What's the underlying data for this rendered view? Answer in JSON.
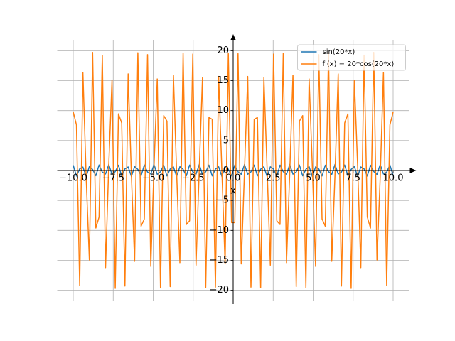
{
  "chart_data": {
    "type": "line",
    "x": [
      -10,
      -9.798,
      -9.596,
      -9.394,
      -9.192,
      -8.99,
      -8.788,
      -8.586,
      -8.384,
      -8.182,
      -7.98,
      -7.778,
      -7.576,
      -7.374,
      -7.172,
      -6.97,
      -6.768,
      -6.566,
      -6.364,
      -6.162,
      -5.96,
      -5.758,
      -5.556,
      -5.354,
      -5.152,
      -4.949,
      -4.747,
      -4.545,
      -4.343,
      -4.141,
      -3.939,
      -3.737,
      -3.535,
      -3.333,
      -3.131,
      -2.929,
      -2.727,
      -2.525,
      -2.323,
      -2.121,
      -1.919,
      -1.717,
      -1.515,
      -1.313,
      -1.111,
      -0.909,
      -0.707,
      -0.505,
      -0.303,
      -0.101,
      0.101,
      0.303,
      0.505,
      0.707,
      0.909,
      1.111,
      1.313,
      1.515,
      1.717,
      1.919,
      2.121,
      2.323,
      2.525,
      2.727,
      2.929,
      3.131,
      3.333,
      3.535,
      3.737,
      3.939,
      4.141,
      4.343,
      4.545,
      4.747,
      4.949,
      5.152,
      5.354,
      5.556,
      5.758,
      5.96,
      6.162,
      6.364,
      6.566,
      6.768,
      6.97,
      7.172,
      7.374,
      7.576,
      7.778,
      7.98,
      8.182,
      8.384,
      8.586,
      8.788,
      8.99,
      9.192,
      9.394,
      9.596,
      9.798,
      10
    ],
    "series": [
      {
        "name": "sin(20*x)",
        "color": "#1f77b4",
        "values": [
          0.873,
          -0.925,
          0.278,
          0.578,
          -0.999,
          0.665,
          0.171,
          -0.877,
          0.922,
          -0.27,
          -0.585,
          0.999,
          -0.659,
          -0.179,
          0.881,
          -0.918,
          0.262,
          0.592,
          -0.999,
          0.652,
          0.188,
          -0.885,
          0.915,
          -0.254,
          -0.599,
          1.0,
          -0.645,
          -0.196,
          0.889,
          -0.911,
          0.245,
          0.606,
          -1.0,
          0.639,
          0.204,
          -0.893,
          0.908,
          -0.237,
          -0.613,
          1.0,
          -0.633,
          -0.213,
          0.897,
          -0.904,
          0.229,
          0.619,
          -1.0,
          0.626,
          0.221,
          -0.9,
          0.9,
          -0.221,
          -0.626,
          1.0,
          -0.619,
          -0.229,
          0.904,
          -0.897,
          0.213,
          0.633,
          -1.0,
          0.613,
          0.237,
          -0.908,
          0.893,
          -0.204,
          -0.639,
          1.0,
          -0.606,
          -0.245,
          0.911,
          -0.889,
          0.196,
          0.645,
          -1.0,
          0.599,
          0.254,
          -0.915,
          0.885,
          -0.188,
          -0.652,
          0.999,
          -0.592,
          -0.262,
          0.918,
          -0.881,
          0.179,
          0.659,
          -0.999,
          0.585,
          0.27,
          -0.922,
          0.877,
          -0.171,
          -0.665,
          0.999,
          -0.578,
          -0.278,
          0.925,
          -0.873
        ]
      },
      {
        "name": "f'(x) = 20*cos(20*x)",
        "color": "#ff7f0e",
        "values": [
          9.76,
          7.61,
          -19.21,
          16.32,
          -1.1,
          -14.94,
          19.71,
          -9.61,
          -7.77,
          19.26,
          -16.22,
          0.93,
          15.05,
          -19.68,
          9.46,
          7.93,
          -19.3,
          16.12,
          -0.76,
          -15.16,
          19.65,
          -9.31,
          -8.08,
          19.35,
          -16.01,
          0.59,
          15.28,
          -19.61,
          9.16,
          8.24,
          -19.39,
          15.91,
          -0.42,
          -15.39,
          19.58,
          -9.01,
          -8.4,
          19.43,
          -15.81,
          0.25,
          15.49,
          -19.54,
          8.85,
          8.55,
          -19.47,
          15.7,
          -0.08,
          -15.6,
          19.51,
          -8.7,
          -8.7,
          19.51,
          -15.6,
          -0.08,
          15.7,
          -19.47,
          8.55,
          8.85,
          -19.54,
          15.49,
          0.25,
          -15.81,
          19.43,
          -8.4,
          -9.01,
          19.58,
          -15.39,
          -0.42,
          15.91,
          -19.39,
          8.24,
          9.16,
          -19.61,
          15.28,
          0.59,
          -16.01,
          19.35,
          -8.08,
          -9.31,
          19.65,
          -15.16,
          -0.76,
          16.12,
          -19.3,
          7.93,
          9.46,
          -19.68,
          15.05,
          0.93,
          -16.22,
          19.26,
          -7.77,
          -9.61,
          19.71,
          -14.94,
          -1.1,
          16.32,
          -19.21,
          7.61,
          9.76
        ]
      }
    ],
    "x_label": "x",
    "xlim": [
      -11,
      11
    ],
    "ylim": [
      -21.7,
      21.7
    ],
    "xticks": [
      {
        "value": -10,
        "label": "−10.0"
      },
      {
        "value": -7.5,
        "label": "−7.5"
      },
      {
        "value": -5,
        "label": "−5.0"
      },
      {
        "value": -2.5,
        "label": "−2.5"
      },
      {
        "value": 0,
        "label": "0.0"
      },
      2.5,
      {
        "value": 5,
        "label": "5.0"
      },
      7.5,
      {
        "value": 10,
        "label": "10.0"
      }
    ],
    "yticks": [
      {
        "value": -20,
        "label": "−20"
      },
      {
        "value": -15,
        "label": "−15"
      },
      {
        "value": -10,
        "label": "−10"
      },
      {
        "value": -5,
        "label": "−5"
      },
      0,
      5,
      10,
      15,
      20
    ],
    "grid": true,
    "legend": "upper right"
  }
}
